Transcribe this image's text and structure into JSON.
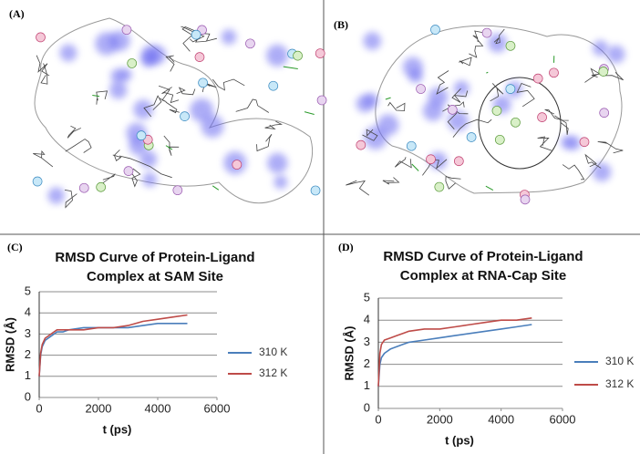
{
  "panels": [
    {
      "label": "(A)"
    },
    {
      "label": "(B)"
    }
  ],
  "chart_data": [
    {
      "type": "line",
      "panel_label": "(C)",
      "title": [
        "RMSD Curve of Protein-Ligand",
        "Complex at SAM Site"
      ],
      "x_label": "t (ps)",
      "y_label": "RMSD (Å)",
      "x": [
        0,
        50,
        100,
        200,
        400,
        600,
        800,
        1000,
        1500,
        2000,
        2500,
        3000,
        3500,
        4000,
        4500,
        5000
      ],
      "series": [
        {
          "name": "310 K",
          "color": "#4a7ebb",
          "values": [
            1.0,
            2.0,
            2.4,
            2.7,
            2.9,
            3.1,
            3.1,
            3.2,
            3.3,
            3.3,
            3.3,
            3.3,
            3.4,
            3.5,
            3.5,
            3.5
          ]
        },
        {
          "name": "312 K",
          "color": "#be4b48",
          "values": [
            1.0,
            2.1,
            2.5,
            2.8,
            3.0,
            3.2,
            3.2,
            3.2,
            3.2,
            3.3,
            3.3,
            3.4,
            3.6,
            3.7,
            3.8,
            3.9
          ]
        }
      ],
      "xlim": [
        0,
        6000
      ],
      "xticks": [
        0,
        2000,
        4000,
        6000
      ],
      "ylim": [
        0,
        5
      ],
      "yticks": [
        0,
        1,
        2,
        3,
        4,
        5
      ],
      "grid": true,
      "legend": "right"
    },
    {
      "type": "line",
      "panel_label": "(D)",
      "title": [
        "RMSD Curve of Protein-Ligand",
        "Complex at RNA-Cap Site"
      ],
      "x_label": "t (ps)",
      "y_label": "RMSD (Å)",
      "x": [
        0,
        50,
        100,
        200,
        400,
        600,
        800,
        1000,
        1500,
        2000,
        2500,
        3000,
        3500,
        4000,
        4500,
        5000
      ],
      "series": [
        {
          "name": "310 K",
          "color": "#4a7ebb",
          "values": [
            1.0,
            2.0,
            2.3,
            2.5,
            2.7,
            2.8,
            2.9,
            3.0,
            3.1,
            3.2,
            3.3,
            3.4,
            3.5,
            3.6,
            3.7,
            3.8
          ]
        },
        {
          "name": "312 K",
          "color": "#be4b48",
          "values": [
            1.0,
            2.5,
            2.9,
            3.1,
            3.2,
            3.3,
            3.4,
            3.5,
            3.6,
            3.6,
            3.7,
            3.8,
            3.9,
            4.0,
            4.0,
            4.1
          ]
        }
      ],
      "xlim": [
        0,
        6000
      ],
      "xticks": [
        0,
        2000,
        4000,
        6000
      ],
      "ylim": [
        0,
        5
      ],
      "yticks": [
        0,
        1,
        2,
        3,
        4,
        5
      ],
      "grid": true,
      "legend": "right"
    }
  ]
}
